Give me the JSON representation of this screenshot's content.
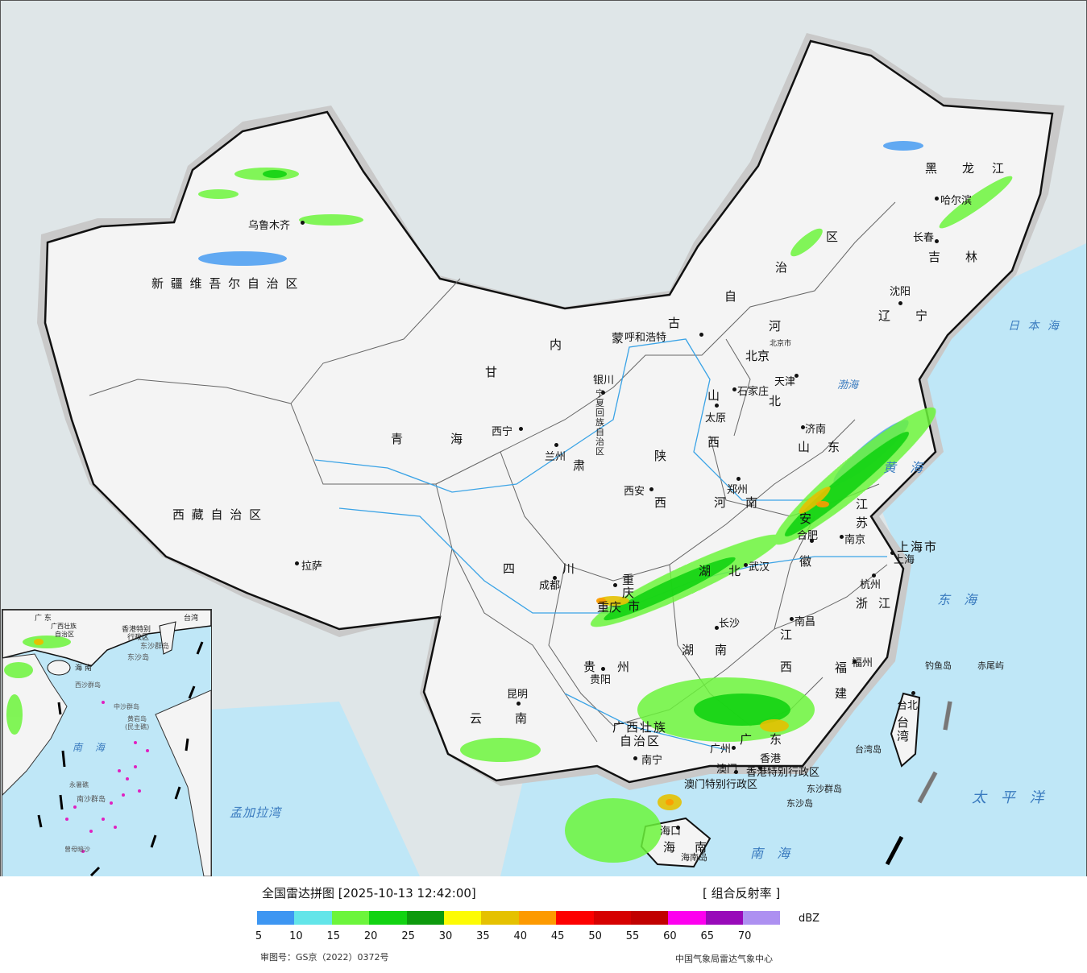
{
  "map": {
    "provinces": [
      "新 疆 维 吾 尔 自 治 区",
      "西 藏 自 治 区",
      "青",
      "海",
      "甘",
      "肃",
      "四",
      "川",
      "云",
      "南",
      "贵",
      "州",
      "陕",
      "西",
      "山",
      "西",
      "河",
      "南",
      "河",
      "北",
      "山",
      "东",
      "江",
      "苏",
      "安",
      "徽",
      "湖",
      "北",
      "湖",
      "南",
      "江",
      "西",
      "浙",
      "江",
      "福",
      "建",
      "广",
      "东",
      "广西壮族",
      "自治区",
      "黑",
      "龙",
      "江",
      "吉",
      "林",
      "辽",
      "宁",
      "内",
      "蒙",
      "古",
      "自",
      "治",
      "区",
      "宁夏回族自治区",
      "重",
      "庆",
      "市",
      "上海市",
      "台",
      "湾",
      "海",
      "南",
      "香港特别行政区",
      "澳门特别行政区"
    ],
    "cities": [
      "乌鲁木齐",
      "拉萨",
      "西宁",
      "兰州",
      "银川",
      "呼和浩特",
      "北京",
      "北京市",
      "天津",
      "石家庄",
      "太原",
      "济南",
      "郑州",
      "西安",
      "成都",
      "重庆",
      "武汉",
      "合肥",
      "南京",
      "上海",
      "杭州",
      "长沙",
      "南昌",
      "福州",
      "台北",
      "贵阳",
      "昆明",
      "南宁",
      "广州",
      "澳门",
      "香港",
      "海口",
      "哈尔滨",
      "长春",
      "沈阳"
    ],
    "seas": [
      "渤海",
      "黄 海",
      "东 海",
      "南 海",
      "太 平 洋",
      "日 本 海",
      "孟加拉湾"
    ],
    "islands": [
      "钓鱼岛",
      "赤尾屿",
      "台湾岛",
      "东沙群岛",
      "东沙岛",
      "海南岛"
    ]
  },
  "inset": {
    "labels": [
      "广 东",
      "香港特别",
      "行政区",
      "东沙群岛",
      "东沙岛",
      "海 南",
      "西沙群岛",
      "中沙群岛",
      "黄岩岛",
      "(民主礁)",
      "南 海",
      "永暑礁",
      "南沙群岛",
      "曾母暗沙",
      "台湾",
      "广西壮族",
      "自治区"
    ]
  },
  "legend": {
    "title": "全国雷达拼图 [2025-10-13 12:42:00]",
    "product": "[ 组合反射率 ]",
    "unit": "dBZ",
    "colors": [
      "#3d96f2",
      "#63e5e9",
      "#6cf53b",
      "#12d312",
      "#0d9a0d",
      "#fdfb04",
      "#e5c101",
      "#fd9a01",
      "#fd0101",
      "#d60101",
      "#c10101",
      "#fd00ef",
      "#980ab9",
      "#ad90f1"
    ],
    "ticks": [
      "5",
      "10",
      "15",
      "20",
      "25",
      "30",
      "35",
      "40",
      "45",
      "50",
      "55",
      "60",
      "65",
      "70"
    ],
    "approval": "审图号：GS京（2022）0372号",
    "issuer": "中国气象局雷达气象中心"
  }
}
